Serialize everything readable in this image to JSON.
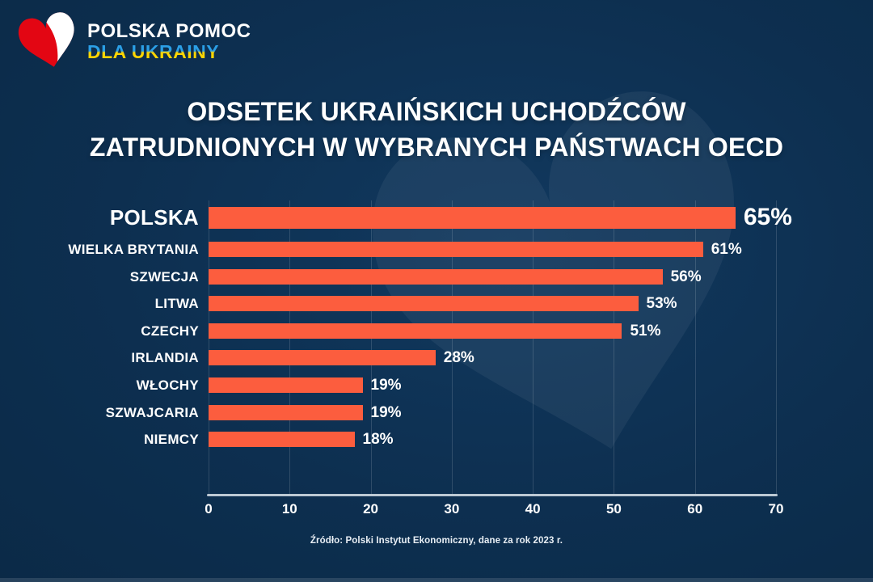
{
  "logo": {
    "line1": "POLSKA POMOC",
    "line2": "DLA UKRAINY",
    "heart_red": "#e30613",
    "heart_white": "#ffffff"
  },
  "header": {
    "title_line1": "ODSETEK UKRAIŃSKICH UCHODŹCÓW",
    "title_line2": "ZATRUDNIONYCH W WYBRANYCH PAŃSTWACH OECD"
  },
  "colors": {
    "background": "#0d2f50",
    "bar": "#fc5d3e",
    "axis": "#bcc9d4",
    "text": "#ffffff",
    "logo_blue": "#2b9fe6",
    "logo_yellow": "#ffd500"
  },
  "chart_data": {
    "type": "bar",
    "orientation": "horizontal",
    "title": "ODSETEK UKRAIŃSKICH UCHODŹCÓW ZATRUDNIONYCH W WYBRANYCH PAŃSTWACH OECD",
    "categories": [
      "POLSKA",
      "WIELKA BRYTANIA",
      "SZWECJA",
      "LITWA",
      "CZECHY",
      "IRLANDIA",
      "WŁOCHY",
      "SZWAJCARIA",
      "NIEMCY"
    ],
    "values": [
      65,
      61,
      56,
      53,
      51,
      28,
      19,
      19,
      18
    ],
    "value_labels": [
      "65%",
      "61%",
      "56%",
      "53%",
      "51%",
      "28%",
      "19%",
      "19%",
      "18%"
    ],
    "highlight_index": 0,
    "xlim": [
      0,
      70
    ],
    "x_ticks": [
      0,
      10,
      20,
      30,
      40,
      50,
      60,
      70
    ],
    "grid": true,
    "legend": false,
    "unit": "%"
  },
  "footer": {
    "source": "Źródło: Polski Instytut Ekonomiczny, dane za rok 2023 r."
  }
}
